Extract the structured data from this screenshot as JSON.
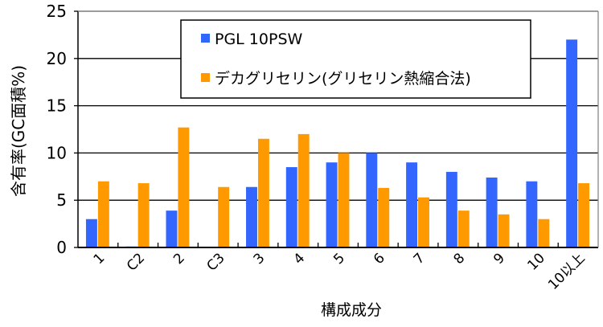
{
  "chart_data": {
    "type": "bar",
    "title": "",
    "xlabel": "構成成分",
    "ylabel": "含有率(GC面積%)",
    "ylim": [
      0,
      25
    ],
    "yticks": [
      0,
      5,
      10,
      15,
      20,
      25
    ],
    "grid": true,
    "legend_position": "top-center",
    "categories": [
      "1",
      "C2",
      "2",
      "C3",
      "3",
      "4",
      "5",
      "6",
      "7",
      "8",
      "9",
      "10",
      "10以上"
    ],
    "series": [
      {
        "name": "PGL 10PSW",
        "color": "#3366ff",
        "values": [
          3.0,
          0.1,
          3.9,
          0.0,
          6.4,
          8.5,
          9.0,
          10.0,
          9.0,
          8.0,
          7.4,
          7.0,
          22.0
        ]
      },
      {
        "name": "デカグリセリン(グリセリン熱縮合法)",
        "color": "#ff9900",
        "values": [
          7.0,
          6.8,
          12.7,
          6.4,
          11.5,
          12.0,
          10.0,
          6.3,
          5.3,
          3.9,
          3.5,
          3.0,
          6.8
        ]
      }
    ]
  }
}
